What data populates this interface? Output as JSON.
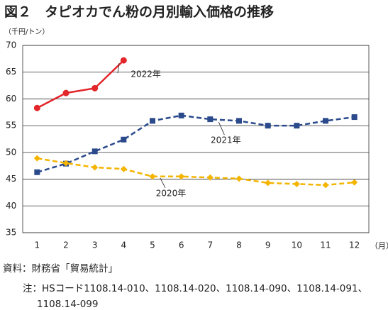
{
  "chart_data": {
    "type": "line",
    "title": "図２　タピオカでん粉の月別輸入価格の推移",
    "y_label": "（千円/トン）",
    "x_label": "（月）",
    "categories": [
      "1",
      "2",
      "3",
      "4",
      "5",
      "6",
      "7",
      "8",
      "9",
      "10",
      "11",
      "12"
    ],
    "series": [
      {
        "name": "2022年",
        "color": "#e2262a",
        "values": [
          58.3,
          61.1,
          62.0,
          67.2,
          null,
          null,
          null,
          null,
          null,
          null,
          null,
          null
        ]
      },
      {
        "name": "2021年",
        "color": "#2a4a8c",
        "values": [
          46.3,
          47.9,
          50.2,
          52.4,
          55.9,
          56.9,
          56.2,
          55.9,
          55.0,
          55.0,
          55.9,
          56.6
        ]
      },
      {
        "name": "2020年",
        "color": "#f4b400",
        "values": [
          48.9,
          48.0,
          47.2,
          46.9,
          45.5,
          45.5,
          45.3,
          45.1,
          44.3,
          44.1,
          43.9,
          44.4
        ]
      }
    ],
    "ylim": [
      35,
      70
    ],
    "yticks": [
      35,
      40,
      45,
      50,
      55,
      60,
      65,
      70
    ],
    "grid": true
  },
  "footnotes": {
    "source": "資料：財務省「貿易統計」",
    "note": "注：HSコード1108.14-010、1108.14-020、1108.14-090、1108.14-091、1108.14-099"
  }
}
